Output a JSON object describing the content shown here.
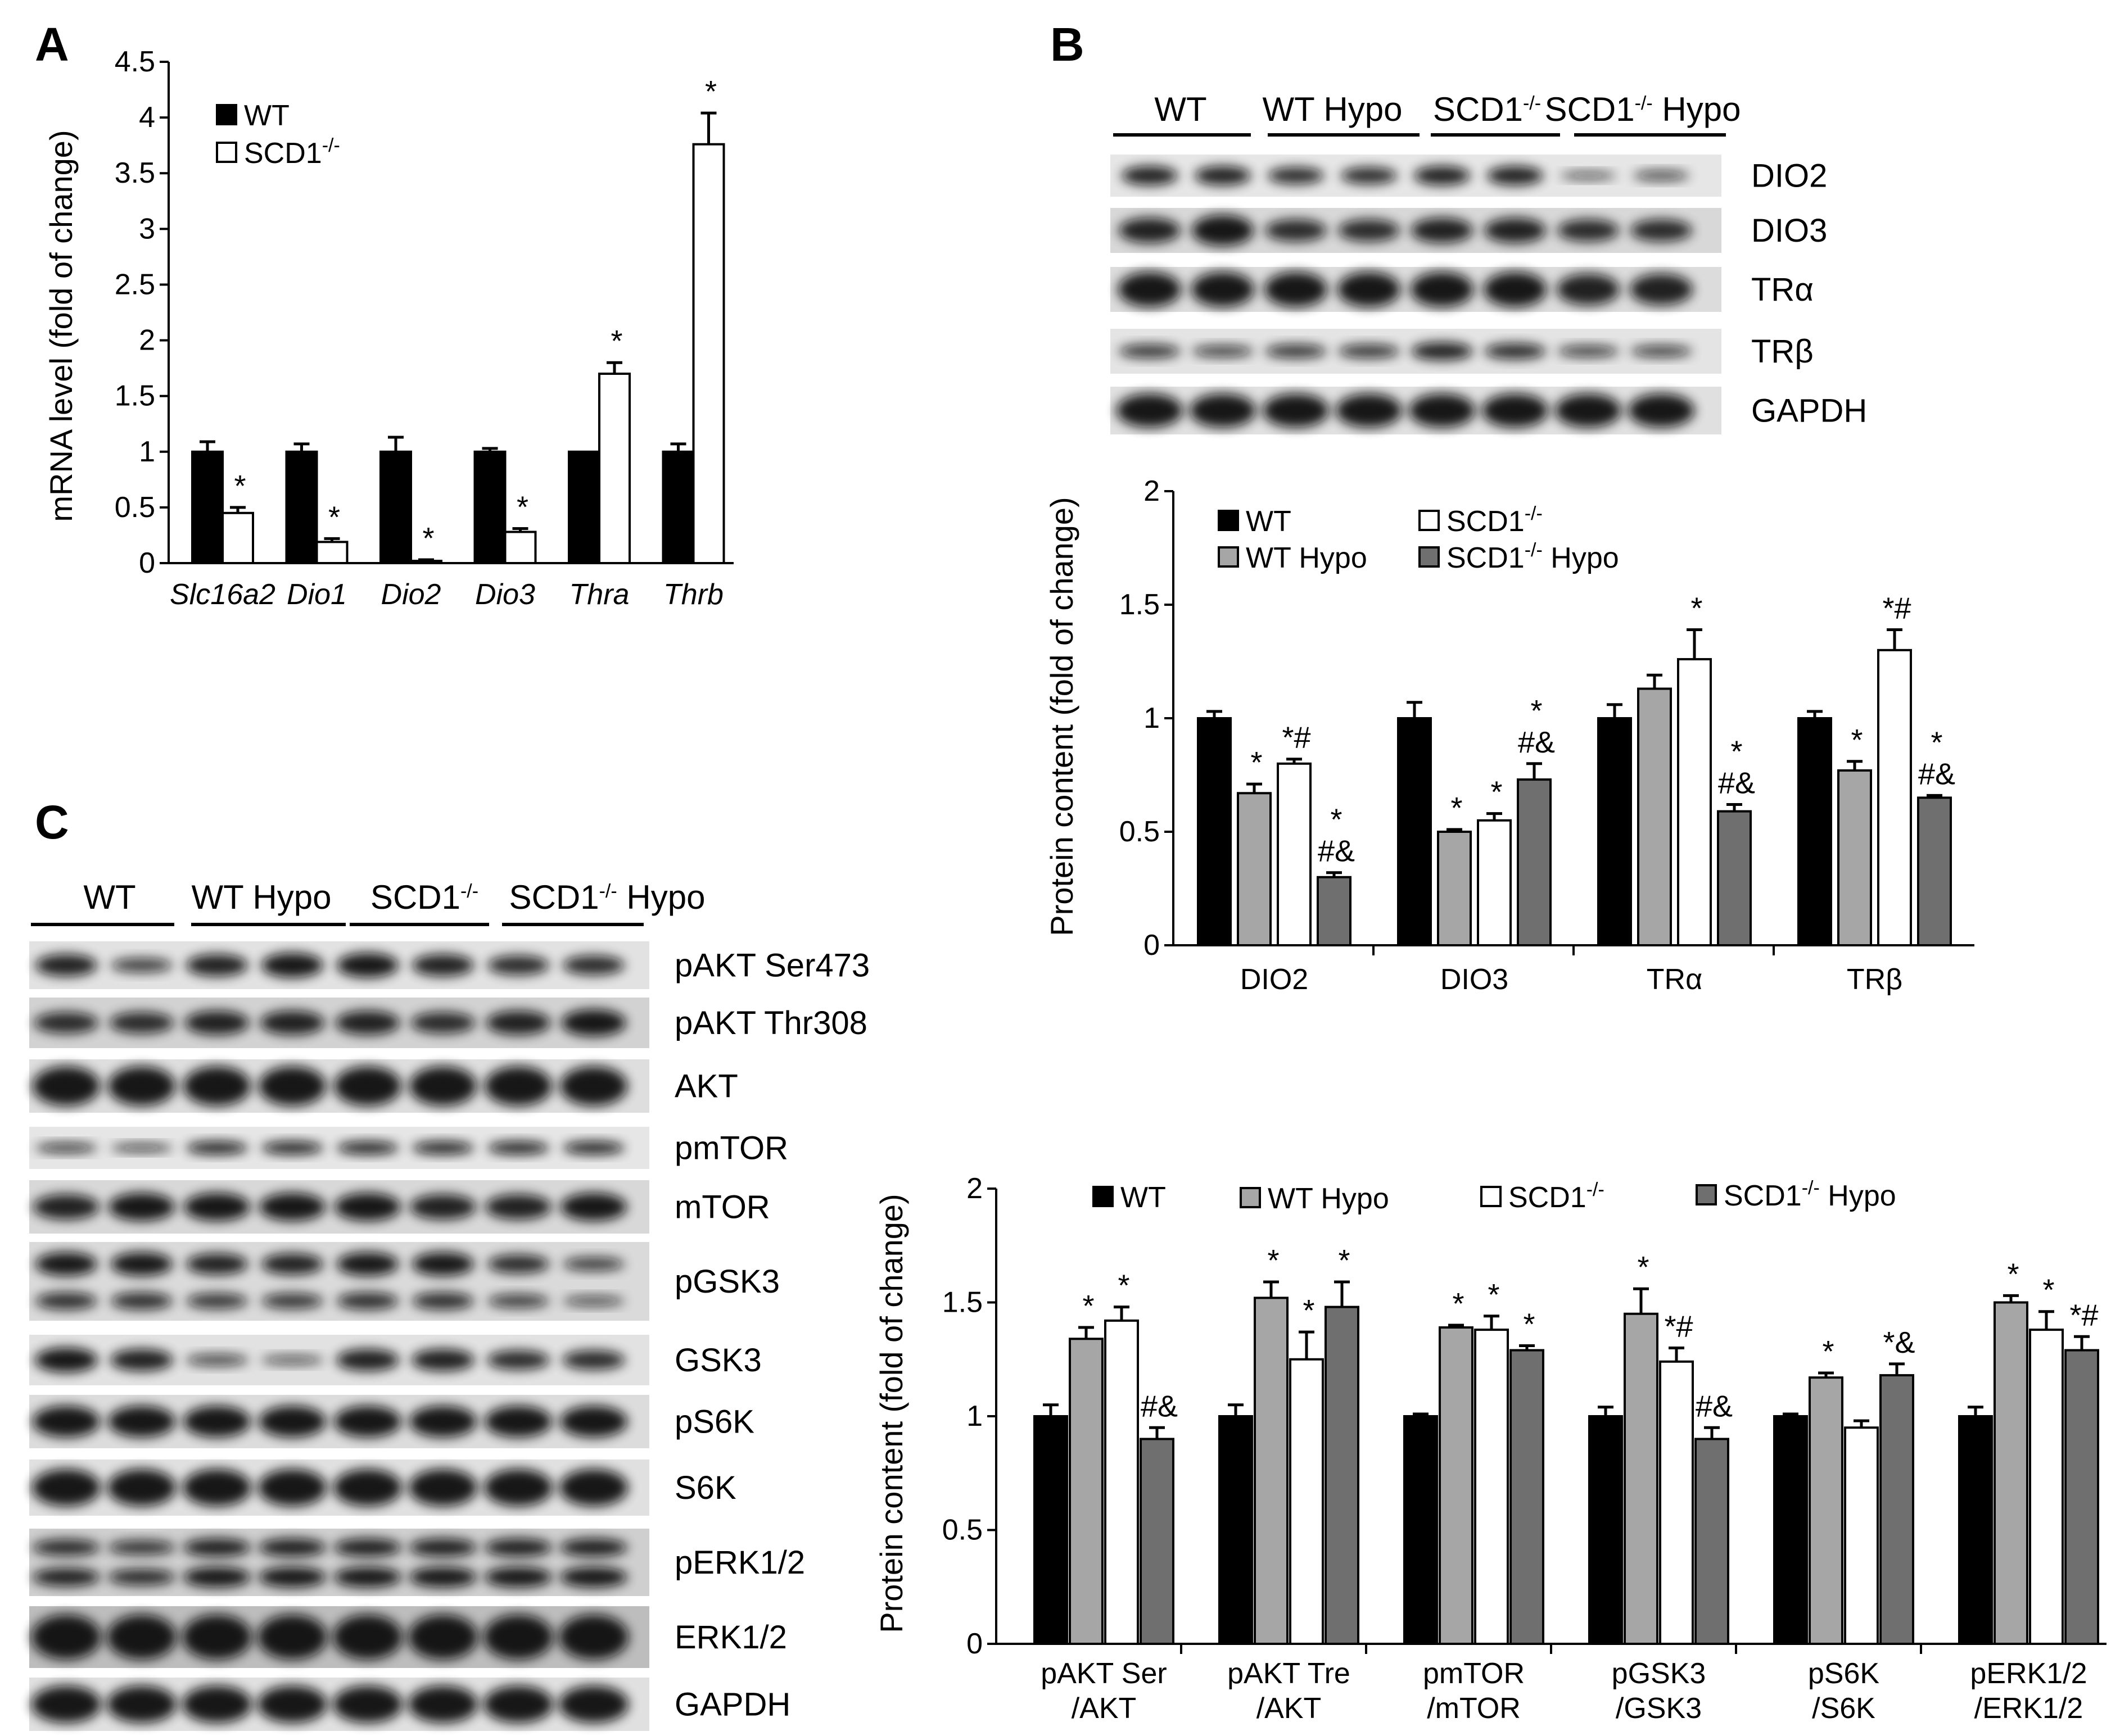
{
  "colors": {
    "wt": "#000000",
    "scd1": "#ffffff",
    "wt_hypo": "#a6a6a6",
    "scd1_hypo": "#6f6f6f",
    "outline": "#000000"
  },
  "panels": {
    "A": {
      "letter": "A"
    },
    "B": {
      "letter": "B",
      "blot_groups": [
        "WT",
        "WT Hypo",
        "SCD1-/-",
        "SCD1-/- Hypo"
      ],
      "blot_rows": [
        "DIO2",
        "DIO3",
        "TRα",
        "TRβ",
        "GAPDH"
      ]
    },
    "C": {
      "letter": "C",
      "blot_groups": [
        "WT",
        "WT Hypo",
        "SCD1-/-",
        "SCD1-/- Hypo"
      ],
      "blot_rows": [
        "pAKT Ser473",
        "pAKT Thr308",
        "AKT",
        "pmTOR",
        "mTOR",
        "pGSK3",
        "GSK3",
        "pS6K",
        "S6K",
        "pERK1/2",
        "ERK1/2",
        "GAPDH"
      ]
    }
  },
  "chart_data": [
    {
      "id": "A",
      "type": "bar",
      "ylabel": "mRNA level (fold of change)",
      "ylim": [
        0,
        4.5
      ],
      "yticks": [
        "0",
        "0.5",
        "1",
        "1.5",
        "2",
        "2.5",
        "3",
        "3.5",
        "4",
        "4.5"
      ],
      "categories": [
        "Slc16a2",
        "Dio1",
        "Dio2",
        "Dio3",
        "Thra",
        "Thrb"
      ],
      "legend": [
        "WT",
        "SCD1-/-"
      ],
      "series": [
        {
          "name": "WT",
          "values": [
            1.0,
            1.0,
            1.0,
            1.0,
            1.0,
            1.0
          ],
          "errors": [
            0.09,
            0.07,
            0.13,
            0.03,
            0.0,
            0.07
          ],
          "annotations": [
            "",
            "",
            "",
            "",
            "",
            ""
          ]
        },
        {
          "name": "SCD1-/-",
          "values": [
            0.45,
            0.19,
            0.02,
            0.28,
            1.7,
            3.76
          ],
          "errors": [
            0.05,
            0.03,
            0.01,
            0.03,
            0.1,
            0.28
          ],
          "annotations": [
            "*",
            "*",
            "*",
            "*",
            "*",
            "*"
          ]
        }
      ]
    },
    {
      "id": "B",
      "type": "bar",
      "ylabel": "Protein content (fold of change)",
      "ylim": [
        0,
        2
      ],
      "yticks": [
        "0",
        "0.5",
        "1",
        "1.5",
        "2"
      ],
      "categories": [
        "DIO2",
        "DIO3",
        "TRα",
        "TRβ"
      ],
      "legend": [
        "WT",
        "SCD1-/-",
        "WT Hypo",
        "SCD1-/- Hypo"
      ],
      "series": [
        {
          "name": "WT",
          "values": [
            1.0,
            1.0,
            1.0,
            1.0
          ],
          "errors": [
            0.03,
            0.07,
            0.06,
            0.03
          ],
          "annotations": [
            "",
            "",
            "",
            ""
          ]
        },
        {
          "name": "WT Hypo",
          "values": [
            0.67,
            0.5,
            1.13,
            0.77
          ],
          "errors": [
            0.04,
            0.01,
            0.06,
            0.04
          ],
          "annotations": [
            "*",
            "*",
            "",
            "*"
          ]
        },
        {
          "name": "SCD1-/-",
          "values": [
            0.8,
            0.55,
            1.26,
            1.3
          ],
          "errors": [
            0.02,
            0.03,
            0.13,
            0.09
          ],
          "annotations": [
            "*#",
            "*",
            "*",
            "*#"
          ]
        },
        {
          "name": "SCD1-/- Hypo",
          "values": [
            0.3,
            0.73,
            0.59,
            0.65
          ],
          "errors": [
            0.02,
            0.07,
            0.03,
            0.01
          ],
          "annotations": [
            "*\n#&",
            "*\n#&",
            "*\n#&",
            "*\n#&"
          ]
        }
      ]
    },
    {
      "id": "C",
      "type": "bar",
      "ylabel": "Protein content (fold of change)",
      "ylim": [
        0,
        2
      ],
      "yticks": [
        "0",
        "0.5",
        "1",
        "1.5",
        "2"
      ],
      "categories": [
        "pAKT Ser\n/AKT",
        "pAKT Tre\n/AKT",
        "pmTOR\n/mTOR",
        "pGSK3\n/GSK3",
        "pS6K\n/S6K",
        "pERK1/2\n/ERK1/2"
      ],
      "legend": [
        "WT",
        "WT Hypo",
        "SCD1-/-",
        "SCD1-/- Hypo"
      ],
      "series": [
        {
          "name": "WT",
          "values": [
            1.0,
            1.0,
            1.0,
            1.0,
            1.0,
            1.0
          ],
          "errors": [
            0.05,
            0.05,
            0.01,
            0.04,
            0.01,
            0.04
          ],
          "annotations": [
            "",
            "",
            "",
            "",
            "",
            ""
          ]
        },
        {
          "name": "WT Hypo",
          "values": [
            1.34,
            1.52,
            1.39,
            1.45,
            1.17,
            1.5
          ],
          "errors": [
            0.05,
            0.07,
            0.01,
            0.11,
            0.02,
            0.03
          ],
          "annotations": [
            "*",
            "*",
            "*",
            "*",
            "*",
            "*"
          ]
        },
        {
          "name": "SCD1-/-",
          "values": [
            1.42,
            1.25,
            1.38,
            1.24,
            0.95,
            1.38
          ],
          "errors": [
            0.06,
            0.12,
            0.06,
            0.06,
            0.03,
            0.08
          ],
          "annotations": [
            "*",
            "*",
            "*",
            "*#",
            "",
            "*"
          ]
        },
        {
          "name": "SCD1-/- Hypo",
          "values": [
            0.9,
            1.48,
            1.29,
            0.9,
            1.18,
            1.29
          ],
          "errors": [
            0.05,
            0.11,
            0.02,
            0.05,
            0.05,
            0.06
          ],
          "annotations": [
            "#&",
            "*",
            "*",
            "#&",
            "*&",
            "*#"
          ]
        }
      ]
    }
  ]
}
